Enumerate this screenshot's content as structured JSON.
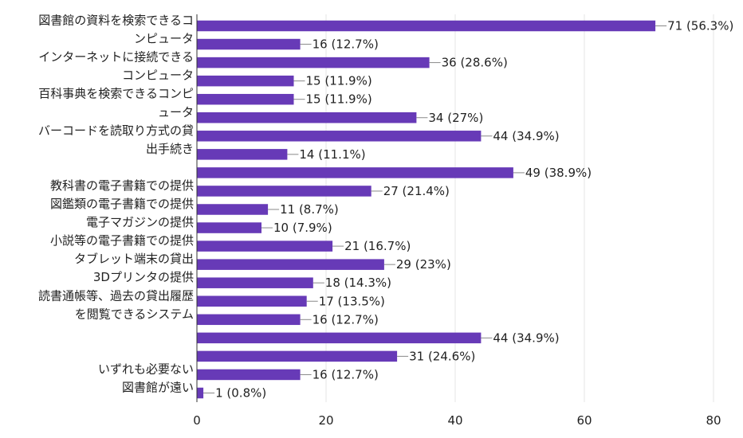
{
  "chart_data": {
    "type": "bar",
    "orientation": "horizontal",
    "bar_color": "#673ab7",
    "grid": true,
    "xlim": [
      0,
      80
    ],
    "x_ticks": [
      "0",
      "20",
      "40",
      "60",
      "80"
    ],
    "rows": [
      {
        "label_lines": [
          "図書館の資料を検索できるコ"
        ],
        "value": 71,
        "value_label": "71 (56.3%)"
      },
      {
        "label_lines": [
          "ンピュータ"
        ],
        "value": 16,
        "value_label": "16 (12.7%)"
      },
      {
        "label_lines": [
          "インターネットに接続できる"
        ],
        "value": 36,
        "value_label": "36 (28.6%)"
      },
      {
        "label_lines": [
          "コンピュータ"
        ],
        "value": 15,
        "value_label": "15 (11.9%)"
      },
      {
        "label_lines": [
          "百科事典を検索できるコンピ"
        ],
        "value": 15,
        "value_label": "15 (11.9%)"
      },
      {
        "label_lines": [
          "ュータ"
        ],
        "value": 34,
        "value_label": "34 (27%)"
      },
      {
        "label_lines": [
          "バーコードを読取り方式の貸"
        ],
        "value": 44,
        "value_label": "44 (34.9%)"
      },
      {
        "label_lines": [
          "出手続き"
        ],
        "value": 14,
        "value_label": "14 (11.1%)"
      },
      {
        "label_lines": [],
        "value": 49,
        "value_label": "49 (38.9%)"
      },
      {
        "label_lines": [
          "教科書の電子書籍での提供"
        ],
        "value": 27,
        "value_label": "27 (21.4%)"
      },
      {
        "label_lines": [
          "図鑑類の電子書籍での提供"
        ],
        "value": 11,
        "value_label": "11 (8.7%)"
      },
      {
        "label_lines": [
          "電子マガジンの提供"
        ],
        "value": 10,
        "value_label": "10 (7.9%)"
      },
      {
        "label_lines": [
          "小説等の電子書籍での提供"
        ],
        "value": 21,
        "value_label": "21 (16.7%)"
      },
      {
        "label_lines": [
          "タブレット端末の貸出"
        ],
        "value": 29,
        "value_label": "29 (23%)"
      },
      {
        "label_lines": [
          "3Dプリンタの提供"
        ],
        "value": 18,
        "value_label": "18 (14.3%)"
      },
      {
        "label_lines": [
          "読書通帳等、過去の貸出履歴"
        ],
        "value": 17,
        "value_label": "17 (13.5%)"
      },
      {
        "label_lines": [
          "を閲覧できるシステム"
        ],
        "value": 16,
        "value_label": "16 (12.7%)"
      },
      {
        "label_lines": [],
        "value": 44,
        "value_label": "44 (34.9%)"
      },
      {
        "label_lines": [],
        "value": 31,
        "value_label": "31 (24.6%)"
      },
      {
        "label_lines": [
          "いずれも必要ない"
        ],
        "value": 16,
        "value_label": "16 (12.7%)"
      },
      {
        "label_lines": [
          "図書館が遠い"
        ],
        "value": 1,
        "value_label": "1 (0.8%)"
      }
    ]
  }
}
